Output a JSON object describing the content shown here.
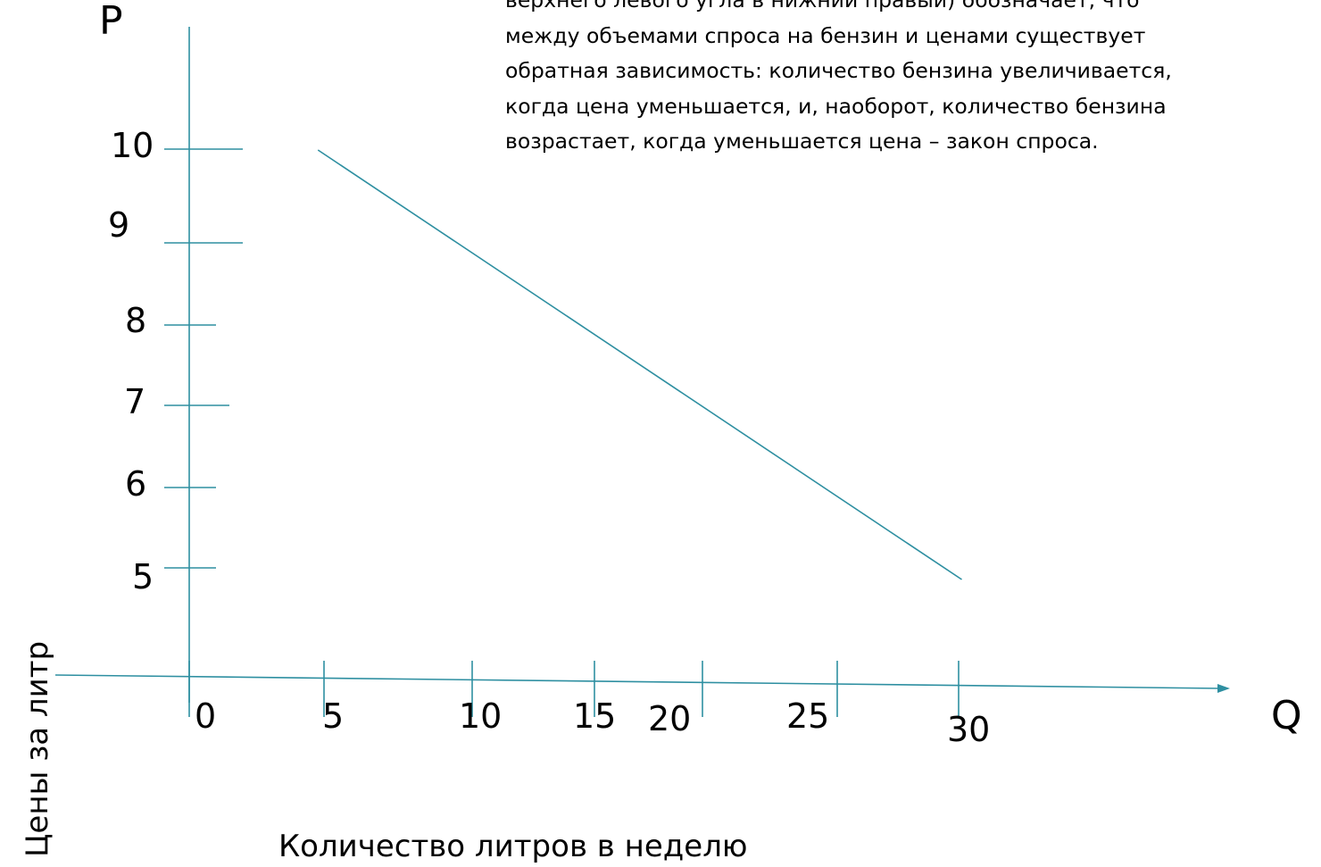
{
  "chart_data": {
    "type": "line",
    "y_axis_letter": "P",
    "x_axis_letter": "Q",
    "ylabel": "Цены за литр",
    "xlabel": "Количество литров в неделю",
    "y_ticks": [
      "10",
      "9",
      "8",
      "7",
      "6",
      "5"
    ],
    "x_ticks": [
      "0",
      "5",
      "10",
      "15",
      "20",
      "25",
      "30"
    ],
    "series": [
      {
        "values": [
          {
            "x": 5,
            "y": 10
          },
          {
            "x": 30,
            "y": 5
          }
        ]
      }
    ],
    "colors": {
      "line": "#2e8fa1",
      "axis": "#2e8fa1"
    }
  },
  "annotation": {
    "lines": [
      "верхнего левого угла в нижний правый) обозначает, что",
      "между объемами спроса на бензин и ценами существует",
      "обратная зависимость: количество бензина увеличивается,",
      "когда цена уменьшается, и, наоборот, количество бензина",
      "возрастает, когда уменьшается цена – закон спроса."
    ]
  }
}
